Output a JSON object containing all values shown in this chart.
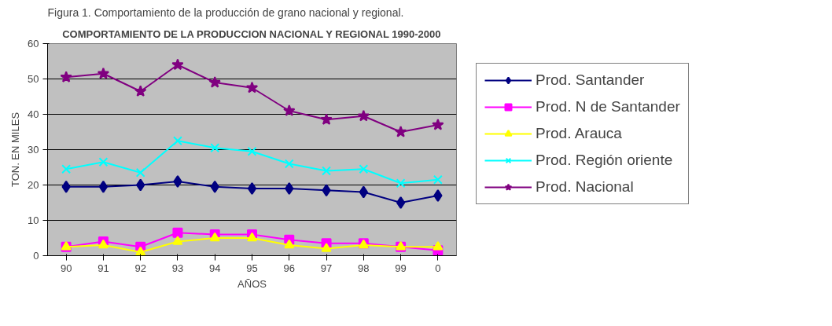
{
  "chart_data": {
    "type": "line",
    "title": "COMPORTAMIENTO DE LA PRODUCCION NACIONAL Y REGIONAL 1990-2000",
    "xlabel": "AÑOS",
    "ylabel": "TON. EN MILES",
    "annotations": [
      "Figura 1. Comportamiento de la producción de grano nacional y regional."
    ],
    "categories": [
      "90",
      "91",
      "92",
      "93",
      "94",
      "95",
      "96",
      "97",
      "98",
      "99",
      "0"
    ],
    "ylim": [
      0,
      60
    ],
    "yticks": [
      0,
      10,
      20,
      30,
      40,
      50,
      60
    ],
    "grid": "y",
    "legend": "right",
    "series": [
      {
        "name": "Prod. Santander",
        "color": "#000080",
        "marker": "diamond",
        "values": [
          19.5,
          19.5,
          20,
          21,
          19.5,
          19,
          19,
          18.5,
          18,
          15,
          17
        ]
      },
      {
        "name": "Prod. N de Santander",
        "color": "#ff00ff",
        "marker": "square",
        "values": [
          2.5,
          4,
          2.5,
          6.5,
          6,
          6,
          4.5,
          3.5,
          3.5,
          2.5,
          1.5
        ]
      },
      {
        "name": "Prod. Arauca",
        "color": "#ffff00",
        "marker": "triangle",
        "values": [
          2.5,
          3,
          1,
          4,
          5,
          5,
          3,
          2,
          3,
          2.5,
          2.5
        ]
      },
      {
        "name": "Prod. Región oriente",
        "color": "#00ffff",
        "marker": "cross",
        "values": [
          24.5,
          26.5,
          23.5,
          32.5,
          30.5,
          29.5,
          26,
          24,
          24.5,
          20.5,
          21.5
        ]
      },
      {
        "name": "Prod. Nacional",
        "color": "#800080",
        "marker": "star",
        "values": [
          50.5,
          51.5,
          46.5,
          54,
          49,
          47.5,
          41,
          38.5,
          39.5,
          35,
          37
        ]
      }
    ]
  }
}
